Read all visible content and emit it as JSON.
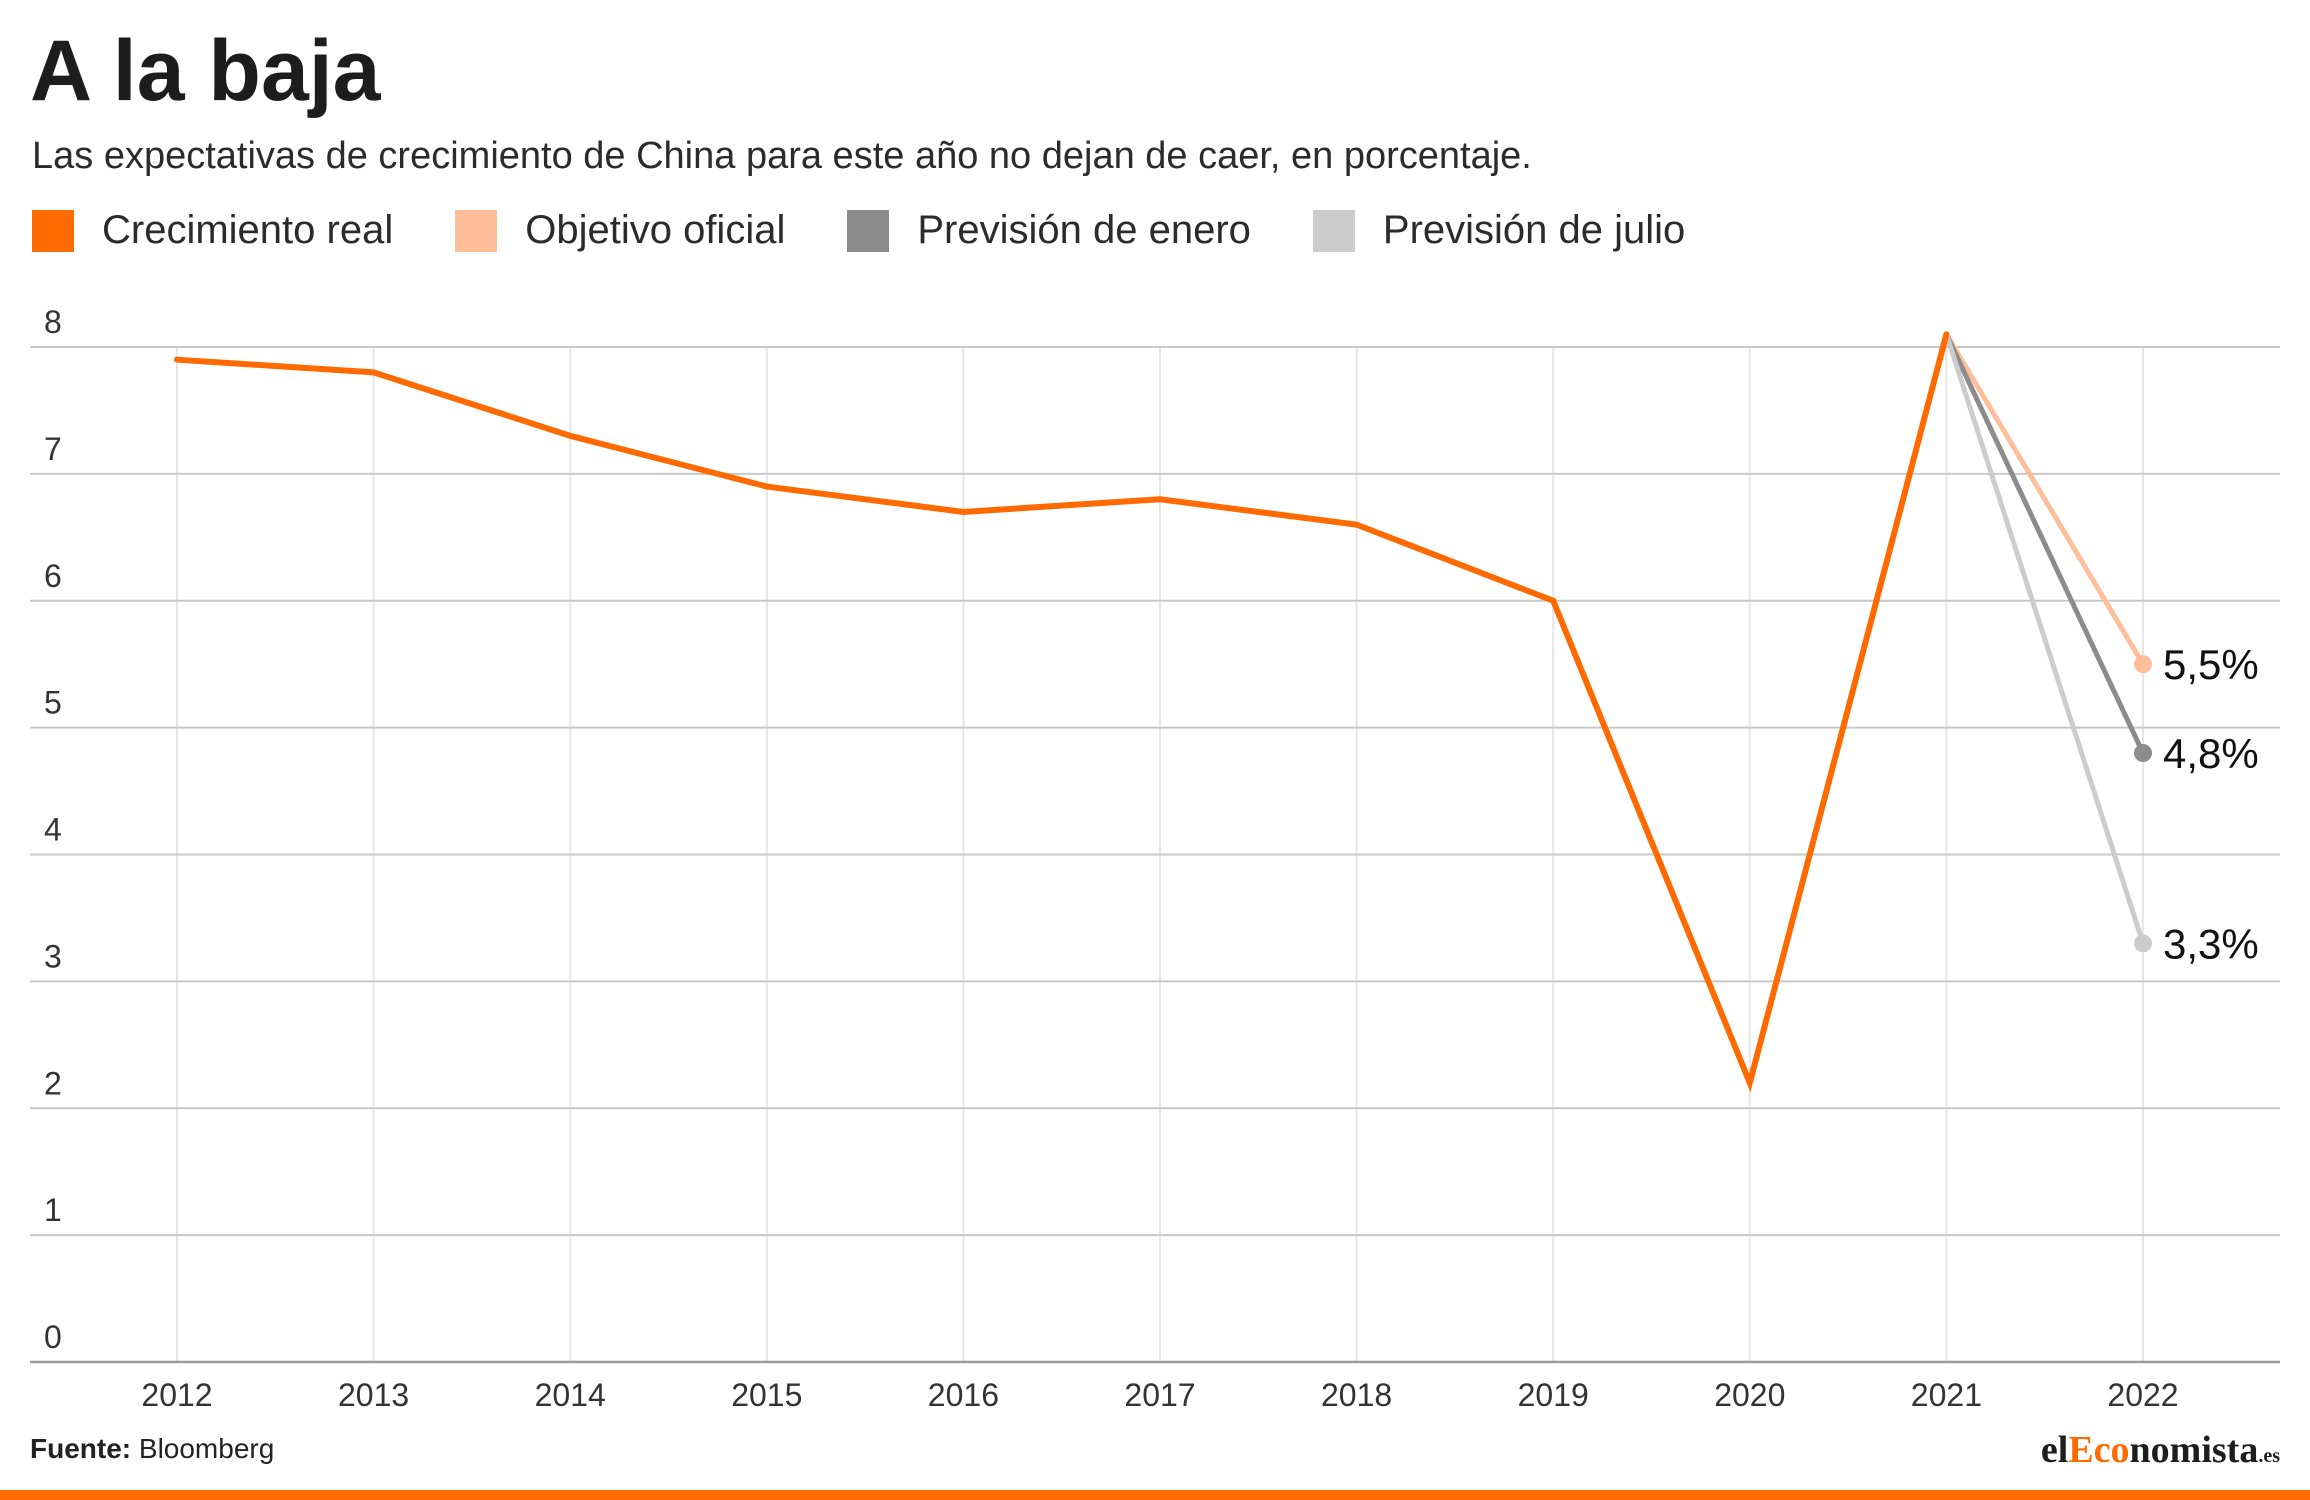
{
  "header": {
    "title": "A la baja",
    "subtitle": "Las expectativas de crecimiento de China para este año no dejan de caer, en porcentaje."
  },
  "legend": [
    {
      "label": "Crecimiento real",
      "color": "#ff6a00"
    },
    {
      "label": "Objetivo oficial",
      "color": "#ffbe99"
    },
    {
      "label": "Previsión de enero",
      "color": "#8c8c8c"
    },
    {
      "label": "Previsión de julio",
      "color": "#cccccc"
    }
  ],
  "footer": {
    "source_label": "Fuente:",
    "source_value": "Bloomberg",
    "brand_prefix": "el",
    "brand_highlight": "Eco",
    "brand_suffix": "nomista",
    "brand_tld": ".es"
  },
  "chart_data": {
    "type": "line",
    "title": "A la baja",
    "subtitle": "Las expectativas de crecimiento de China para este año no dejan de caer, en porcentaje.",
    "xlabel": "",
    "ylabel": "",
    "ylim": [
      0,
      8
    ],
    "yticks": [
      0,
      1,
      2,
      3,
      4,
      5,
      6,
      7,
      8
    ],
    "categories": [
      "2012",
      "2013",
      "2014",
      "2015",
      "2016",
      "2017",
      "2018",
      "2019",
      "2020",
      "2021",
      "2022"
    ],
    "grid": true,
    "legend_position": "top-left",
    "series": [
      {
        "name": "Crecimiento real",
        "color": "#ff6a00",
        "x": [
          "2012",
          "2013",
          "2014",
          "2015",
          "2016",
          "2017",
          "2018",
          "2019",
          "2020",
          "2021"
        ],
        "values": [
          7.9,
          7.8,
          7.3,
          6.9,
          6.7,
          6.8,
          6.6,
          6.0,
          2.2,
          8.1
        ]
      },
      {
        "name": "Objetivo oficial",
        "color": "#ffbe99",
        "x": [
          "2021",
          "2022"
        ],
        "values": [
          8.1,
          5.5
        ],
        "end_label": "5,5%"
      },
      {
        "name": "Previsión de enero",
        "color": "#8c8c8c",
        "x": [
          "2021",
          "2022"
        ],
        "values": [
          8.1,
          4.8
        ],
        "end_label": "4,8%"
      },
      {
        "name": "Previsión de julio",
        "color": "#cccccc",
        "x": [
          "2021",
          "2022"
        ],
        "values": [
          8.1,
          3.3
        ],
        "end_label": "3,3%"
      }
    ]
  }
}
